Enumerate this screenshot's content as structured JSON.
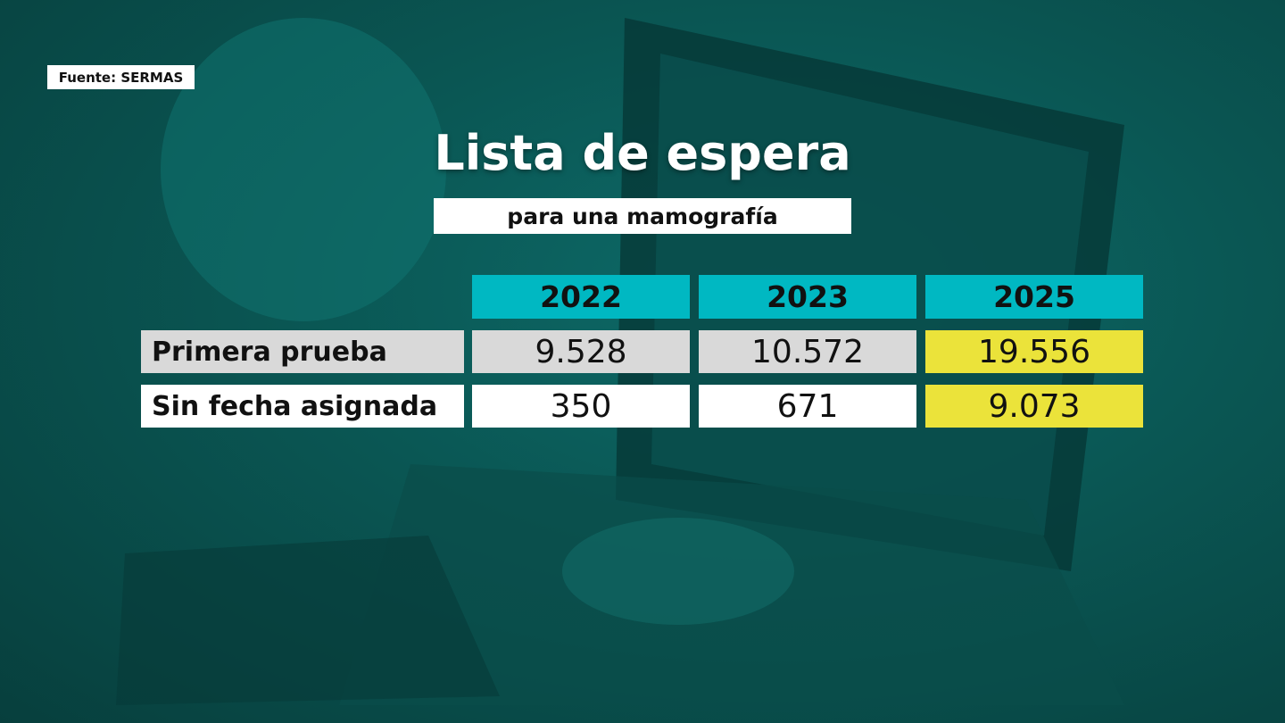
{
  "source": "Fuente: SERMAS",
  "title": "Lista de espera",
  "subtitle": "para una mamografía",
  "table": {
    "columns": [
      "2022",
      "2023",
      "2025"
    ],
    "rows": [
      [
        "Primera prueba",
        "9.528",
        "10.572",
        "19.556"
      ],
      [
        "Sin fecha asignada",
        "350",
        "671",
        "9.073"
      ]
    ]
  }
}
